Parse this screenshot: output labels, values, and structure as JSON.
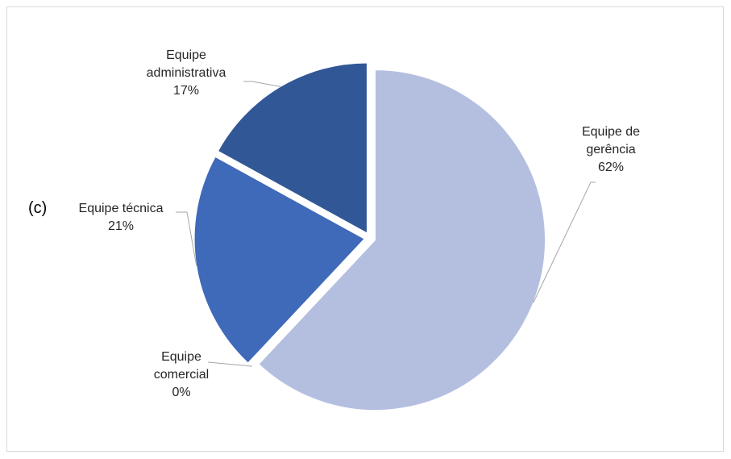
{
  "panel_label": "(c)",
  "chart_data": {
    "type": "pie",
    "title": "",
    "slices": [
      {
        "name": "Equipe de gerência",
        "label_lines": [
          "Equipe de",
          "gerência"
        ],
        "value": 62,
        "value_label": "62%",
        "color": "#b4bfe0"
      },
      {
        "name": "Equipe comercial",
        "label_lines": [
          "Equipe",
          "comercial"
        ],
        "value": 0,
        "value_label": "0%",
        "color": "#5b7fcb"
      },
      {
        "name": "Equipe técnica",
        "label_lines": [
          "Equipe técnica"
        ],
        "value": 21,
        "value_label": "21%",
        "color": "#3f69b9"
      },
      {
        "name": "Equipe administrativa",
        "label_lines": [
          "Equipe",
          "administrativa"
        ],
        "value": 17,
        "value_label": "17%",
        "color": "#315796"
      }
    ]
  }
}
